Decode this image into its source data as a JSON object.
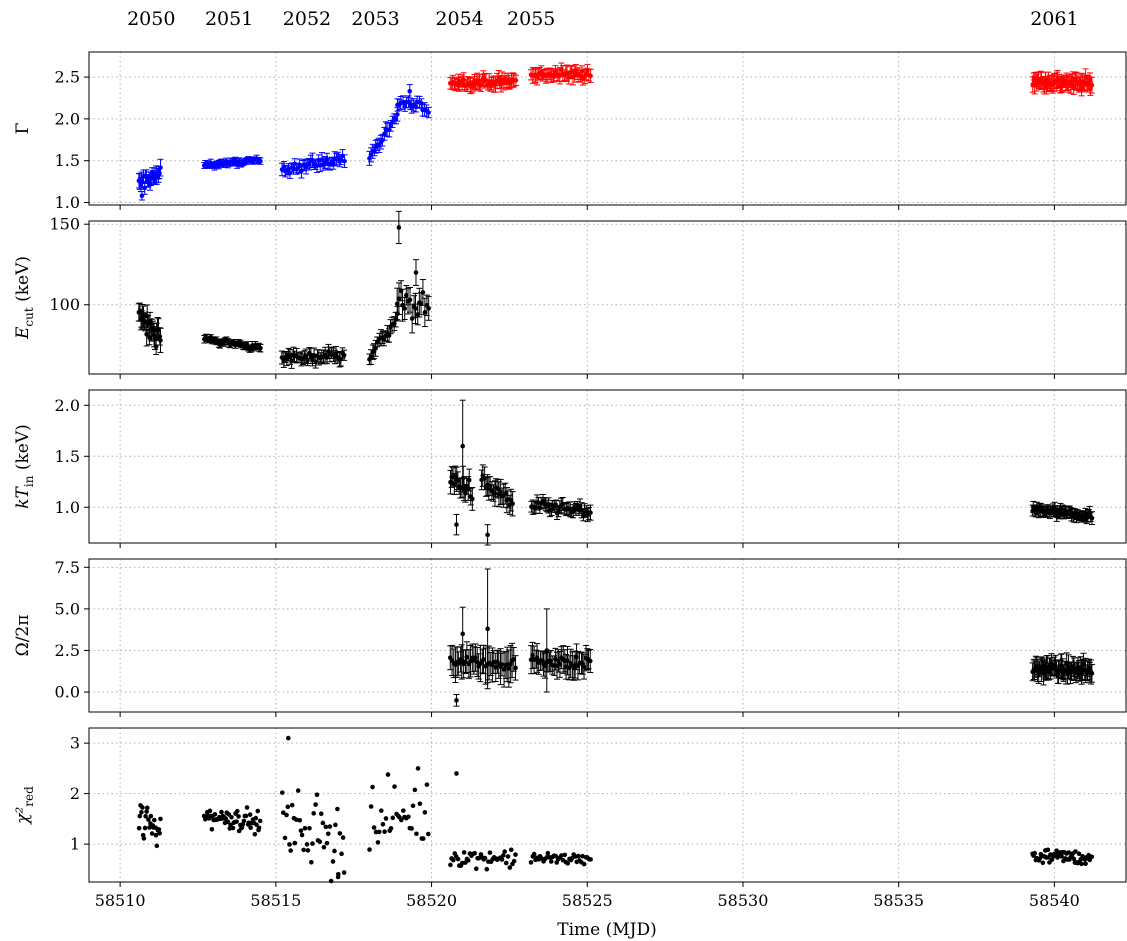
{
  "chart_data": {
    "type": "scatter",
    "xlabel": "Time (MJD)",
    "xlim": [
      58509,
      58542.3
    ],
    "x_ticks": [
      "58510",
      "58515",
      "58520",
      "58525",
      "58530",
      "58535",
      "58540"
    ],
    "x_tick_values": [
      58510,
      58515,
      58520,
      58525,
      58530,
      58535,
      58540
    ],
    "grid": true,
    "observations": [
      {
        "label": "2050",
        "x": 58511.0
      },
      {
        "label": "2051",
        "x": 58513.5
      },
      {
        "label": "2052",
        "x": 58516.0
      },
      {
        "label": "2053",
        "x": 58518.2
      },
      {
        "label": "2054",
        "x": 58520.9
      },
      {
        "label": "2055",
        "x": 58523.2
      },
      {
        "label": "2061",
        "x": 58540.0
      }
    ],
    "colors": {
      "blue": "#0000ff",
      "red": "#ff0000",
      "black": "#000000"
    },
    "panels": [
      {
        "id": "gamma",
        "ylabel": "Γ",
        "ylim": [
          0.97,
          2.8
        ],
        "yticks": [
          1.0,
          1.5,
          2.0,
          2.5
        ],
        "ytick_labels": [
          "1.0",
          "1.5",
          "2.0",
          "2.5"
        ],
        "segments": [
          {
            "x0": 58510.6,
            "x1": 58511.3,
            "y0": 1.22,
            "y1": 1.34,
            "err": 0.08,
            "n": 24,
            "scatter": 0.08,
            "color": "blue"
          },
          {
            "x0": 58512.7,
            "x1": 58514.5,
            "y0": 1.45,
            "y1": 1.5,
            "err": 0.04,
            "n": 44,
            "scatter": 0.02,
            "color": "blue"
          },
          {
            "x0": 58515.2,
            "x1": 58517.2,
            "y0": 1.4,
            "y1": 1.52,
            "err": 0.07,
            "n": 40,
            "scatter": 0.05,
            "color": "blue"
          },
          {
            "x0": 58518.0,
            "x1": 58518.9,
            "y0": 1.55,
            "y1": 2.02,
            "err": 0.07,
            "n": 18,
            "scatter": 0.05,
            "color": "blue"
          },
          {
            "x0": 58518.9,
            "x1": 58519.9,
            "y0": 2.2,
            "y1": 2.12,
            "err": 0.07,
            "n": 18,
            "scatter": 0.05,
            "color": "blue"
          },
          {
            "x0": 58520.6,
            "x1": 58522.7,
            "y0": 2.43,
            "y1": 2.45,
            "err": 0.08,
            "n": 50,
            "scatter": 0.04,
            "color": "red"
          },
          {
            "x0": 58523.2,
            "x1": 58525.1,
            "y0": 2.52,
            "y1": 2.54,
            "err": 0.08,
            "n": 42,
            "scatter": 0.04,
            "color": "red"
          },
          {
            "x0": 58539.3,
            "x1": 58541.2,
            "y0": 2.45,
            "y1": 2.42,
            "err": 0.09,
            "n": 60,
            "scatter": 0.05,
            "color": "red"
          }
        ],
        "outliers": [
          {
            "x": 58519.3,
            "y": 2.33,
            "err": 0.08,
            "color": "blue"
          },
          {
            "x": 58510.7,
            "y": 1.08,
            "err": 0.05,
            "color": "blue"
          }
        ]
      },
      {
        "id": "ecut",
        "ylabel": "E_cut (keV)",
        "ylim": [
          57,
          152
        ],
        "yticks": [
          100,
          150
        ],
        "ytick_labels": [
          "100",
          "150"
        ],
        "segments": [
          {
            "x0": 58510.6,
            "x1": 58511.3,
            "y0": 95,
            "y1": 78,
            "err": 6,
            "n": 24,
            "scatter": 6,
            "color": "black"
          },
          {
            "x0": 58512.7,
            "x1": 58514.5,
            "y0": 79,
            "y1": 73,
            "err": 2,
            "n": 44,
            "scatter": 1.5,
            "color": "black"
          },
          {
            "x0": 58515.2,
            "x1": 58517.2,
            "y0": 67,
            "y1": 69,
            "err": 4,
            "n": 40,
            "scatter": 2.5,
            "color": "black"
          },
          {
            "x0": 58518.0,
            "x1": 58518.9,
            "y0": 67,
            "y1": 92,
            "err": 4,
            "n": 18,
            "scatter": 3,
            "color": "black"
          },
          {
            "x0": 58518.9,
            "x1": 58519.9,
            "y0": 102,
            "y1": 98,
            "err": 8,
            "n": 18,
            "scatter": 6,
            "color": "black"
          }
        ],
        "outliers": [
          {
            "x": 58518.95,
            "y": 148,
            "err": 10,
            "color": "black"
          },
          {
            "x": 58519.5,
            "y": 120,
            "err": 8,
            "color": "black"
          }
        ]
      },
      {
        "id": "ktin",
        "ylabel": "kT_in (keV)",
        "ylim": [
          0.65,
          2.15
        ],
        "yticks": [
          1.0,
          1.5,
          2.0
        ],
        "ytick_labels": [
          "1.0",
          "1.5",
          "2.0"
        ],
        "segments": [
          {
            "x0": 58520.6,
            "x1": 58521.3,
            "y0": 1.3,
            "y1": 1.15,
            "err": 0.1,
            "n": 18,
            "scatter": 0.08,
            "color": "black"
          },
          {
            "x0": 58521.6,
            "x1": 58522.6,
            "y0": 1.25,
            "y1": 1.05,
            "err": 0.1,
            "n": 22,
            "scatter": 0.08,
            "color": "black"
          },
          {
            "x0": 58523.2,
            "x1": 58525.1,
            "y0": 1.02,
            "y1": 0.95,
            "err": 0.06,
            "n": 42,
            "scatter": 0.04,
            "color": "black"
          },
          {
            "x0": 58539.3,
            "x1": 58541.2,
            "y0": 0.98,
            "y1": 0.91,
            "err": 0.05,
            "n": 60,
            "scatter": 0.03,
            "color": "black"
          }
        ],
        "outliers": [
          {
            "x": 58521.0,
            "y": 1.6,
            "err": 0.45,
            "color": "black"
          },
          {
            "x": 58520.8,
            "y": 0.83,
            "err": 0.1,
            "color": "black"
          },
          {
            "x": 58521.8,
            "y": 0.73,
            "err": 0.1,
            "color": "black"
          }
        ]
      },
      {
        "id": "omega",
        "ylabel": "Ω/2π",
        "ylim": [
          -1.2,
          8.0
        ],
        "yticks": [
          0.0,
          2.5,
          5.0,
          7.5
        ],
        "ytick_labels": [
          "0.0",
          "2.5",
          "5.0",
          "7.5"
        ],
        "segments": [
          {
            "x0": 58520.6,
            "x1": 58522.7,
            "y0": 1.9,
            "y1": 1.7,
            "err": 0.9,
            "n": 40,
            "scatter": 0.3,
            "color": "black"
          },
          {
            "x0": 58523.2,
            "x1": 58525.1,
            "y0": 1.9,
            "y1": 1.7,
            "err": 0.7,
            "n": 40,
            "scatter": 0.3,
            "color": "black"
          },
          {
            "x0": 58539.3,
            "x1": 58541.2,
            "y0": 1.4,
            "y1": 1.3,
            "err": 0.6,
            "n": 60,
            "scatter": 0.25,
            "color": "black"
          }
        ],
        "outliers": [
          {
            "x": 58520.8,
            "y": -0.5,
            "err": 0.35,
            "color": "black"
          },
          {
            "x": 58521.0,
            "y": 3.5,
            "err": 1.6,
            "color": "black"
          },
          {
            "x": 58521.8,
            "y": 3.8,
            "err": 3.6,
            "color": "black"
          },
          {
            "x": 58523.7,
            "y": 2.5,
            "err": 2.5,
            "color": "black"
          }
        ]
      },
      {
        "id": "chi2",
        "ylabel": "χ²_red",
        "ylim": [
          0.25,
          3.3
        ],
        "yticks": [
          1,
          2,
          3
        ],
        "ytick_labels": [
          "1",
          "2",
          "3"
        ],
        "segments": [
          {
            "x0": 58510.6,
            "x1": 58511.3,
            "y0": 1.4,
            "y1": 1.3,
            "err": 0,
            "n": 26,
            "scatter": 0.45,
            "color": "black"
          },
          {
            "x0": 58512.7,
            "x1": 58514.5,
            "y0": 1.55,
            "y1": 1.45,
            "err": 0,
            "n": 60,
            "scatter": 0.18,
            "color": "black"
          },
          {
            "x0": 58515.2,
            "x1": 58517.2,
            "y0": 1.3,
            "y1": 1.2,
            "err": 0,
            "n": 44,
            "scatter": 0.7,
            "color": "black"
          },
          {
            "x0": 58518.0,
            "x1": 58519.9,
            "y0": 1.4,
            "y1": 1.6,
            "err": 0,
            "n": 36,
            "scatter": 0.6,
            "color": "black"
          },
          {
            "x0": 58520.6,
            "x1": 58522.7,
            "y0": 0.75,
            "y1": 0.7,
            "err": 0,
            "n": 44,
            "scatter": 0.15,
            "color": "black"
          },
          {
            "x0": 58523.2,
            "x1": 58525.1,
            "y0": 0.72,
            "y1": 0.7,
            "err": 0,
            "n": 40,
            "scatter": 0.1,
            "color": "black"
          },
          {
            "x0": 58539.3,
            "x1": 58541.2,
            "y0": 0.78,
            "y1": 0.72,
            "err": 0,
            "n": 60,
            "scatter": 0.12,
            "color": "black"
          }
        ],
        "outliers": [
          {
            "x": 58515.4,
            "y": 3.1,
            "err": 0,
            "color": "black"
          },
          {
            "x": 58520.8,
            "y": 2.4,
            "err": 0,
            "color": "black"
          },
          {
            "x": 58517.0,
            "y": 0.35,
            "err": 0,
            "color": "black"
          }
        ]
      }
    ]
  }
}
